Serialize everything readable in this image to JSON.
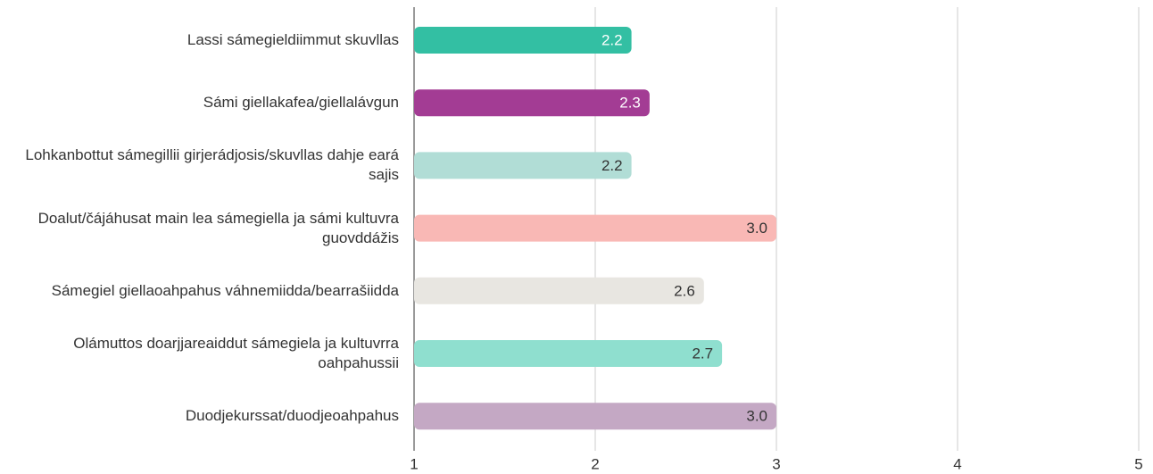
{
  "chart_data": {
    "type": "bar",
    "orientation": "horizontal",
    "categories": [
      "Lassi sámegieldiimmut skuvllas",
      "Sámi giellakafea/giellalávgun",
      "Lohkanbottut sámegillii girjerádjosis/skuvllas dahje eará sajis",
      "Doalut/čájáhusat main lea sámegiella ja sámi kultuvra guovddážis",
      "Sámegiel giellaoahpahus váhnemiidda/bearrašiidda",
      "Olámuttos doarjjareaiddut sámegiela ja kultuvrra oahpahussii",
      "Duodjekurssat/duodjeoahpahus"
    ],
    "values": [
      2.2,
      2.3,
      2.2,
      3.0,
      2.6,
      2.7,
      3.0
    ],
    "value_labels": [
      "2.2",
      "2.3",
      "2.2",
      "3.0",
      "2.6",
      "2.7",
      "3.0"
    ],
    "colors": [
      "#33bfa3",
      "#a33c94",
      "#b1ddd6",
      "#f9b8b5",
      "#e8e6e1",
      "#8fdfcf",
      "#c4a8c4"
    ],
    "xlim": [
      1,
      5
    ],
    "xticks": [
      1,
      2,
      3,
      4,
      5
    ],
    "grid": true
  }
}
